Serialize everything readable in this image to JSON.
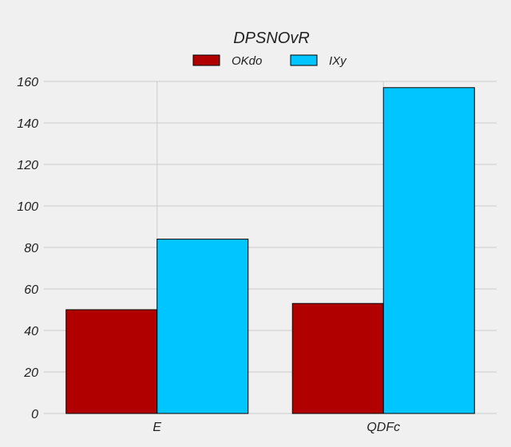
{
  "chart_data": {
    "type": "bar",
    "title": "DPSNOvR",
    "categories": [
      "E",
      "QDFc"
    ],
    "series": [
      {
        "name": "OKdo",
        "values": [
          50,
          53
        ],
        "color": "#b00000"
      },
      {
        "name": "IXy",
        "values": [
          84,
          157
        ],
        "color": "#00c5ff"
      }
    ],
    "xlabel": "",
    "ylabel": "",
    "ylim": [
      0,
      160
    ],
    "yticks": [
      "0",
      "20",
      "40",
      "60",
      "80",
      "100",
      "120",
      "140",
      "160"
    ],
    "grid": true,
    "legend_position": "top-center"
  }
}
